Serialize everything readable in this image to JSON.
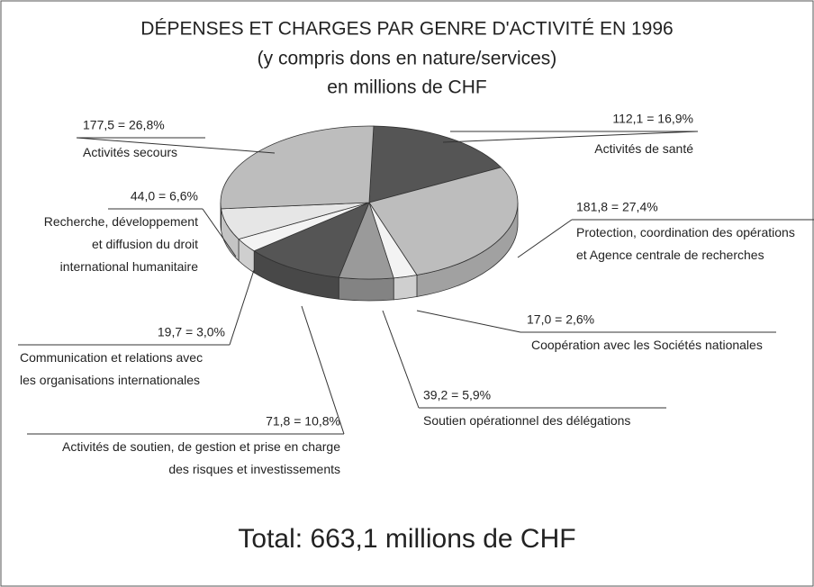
{
  "chart_data": {
    "type": "pie3d",
    "title": "DÉPENSES ET CHARGES PAR GENRE D'ACTIVITÉ EN 1996",
    "subtitle": "(y compris dons en nature/services)",
    "unit_label": "en millions de CHF",
    "total_label": "Total: 663,1 millions de CHF",
    "categories": [
      "Activités de santé",
      "Protection, coordination des opérations\net Agence centrale de recherches",
      "Coopération avec les Sociétés nationales",
      "Soutien opérationnel des délégations",
      "Activités de soutien, de gestion et prise en charge\ndes risques et investissements",
      "Communication et relations avec\nles organisations internationales",
      "Recherche, développement\net diffusion du droit\ninternational humanitaire",
      "Activités secours"
    ],
    "values": [
      112.1,
      181.8,
      17.0,
      39.2,
      71.8,
      19.7,
      44.0,
      177.5
    ],
    "value_labels": [
      "112,1 = 16,9%",
      "181,8 = 27,4%",
      "17,0 = 2,6%",
      "39,2 = 5,9%",
      "71,8 = 10,8%",
      "19,7 = 3,0%",
      "44,0 = 6,6%",
      "177,5 = 26,8%"
    ],
    "colors": [
      "#555555",
      "#bdbdbd",
      "#f3f3f3",
      "#9a9a9a",
      "#555555",
      "#f3f3f3",
      "#e6e6e6",
      "#bdbdbd"
    ]
  }
}
